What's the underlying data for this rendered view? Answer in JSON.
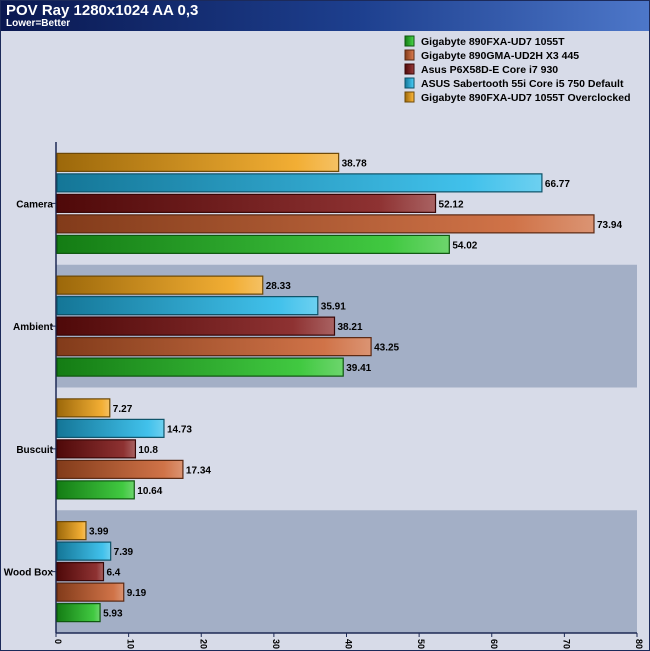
{
  "header": {
    "title": "POV Ray 1280x1024 AA 0,3",
    "subtitle": "Lower=Better"
  },
  "colors": {
    "title_bar": "#0d1e5c",
    "plot_band_light": "#d7dbe8",
    "plot_band_dark": "#a3afc6"
  },
  "chart_data": {
    "type": "bar",
    "orientation": "horizontal",
    "title": "POV Ray 1280x1024 AA 0,3",
    "subtitle": "Lower=Better",
    "categories": [
      "Camera",
      "Ambient",
      "Buscuit",
      "Wood Box"
    ],
    "xlim": [
      0,
      80
    ],
    "xticks": [
      0,
      10,
      20,
      30,
      40,
      50,
      60,
      70,
      80
    ],
    "legend_position": "top-right",
    "grid": false,
    "series": [
      {
        "name": "Gigabyte 890FXA-UD7 1055T",
        "color": "#1fbf1f",
        "values": [
          54.02,
          39.41,
          10.64,
          5.93
        ],
        "labels": [
          "54.02",
          "39.41",
          "10.64",
          "5.93"
        ]
      },
      {
        "name": "Gigabyte 890GMA-UD2H X3 445",
        "color": "#c85a28",
        "values": [
          73.94,
          43.25,
          17.34,
          9.19
        ],
        "labels": [
          "73.94",
          "43.25",
          "17.34",
          "9.19"
        ]
      },
      {
        "name": "Asus P6X58D-E Core i7 930",
        "color": "#7a0e0e",
        "values": [
          52.12,
          38.21,
          10.8,
          6.4
        ],
        "labels": [
          "52.12",
          "38.21",
          "10.8",
          "6.4"
        ]
      },
      {
        "name": "ASUS Sabertooth 55i Core i5 750 Default",
        "color": "#1fb6e8",
        "values": [
          66.77,
          35.91,
          14.73,
          7.39
        ],
        "labels": [
          "66.77",
          "35.91",
          "14.73",
          "7.39"
        ]
      },
      {
        "name": "Gigabyte 890FXA-UD7 1055T Overclocked",
        "color": "#f0a010",
        "values": [
          38.78,
          28.33,
          7.27,
          3.99
        ],
        "labels": [
          "38.78",
          "28.33",
          "7.27",
          "3.99"
        ]
      }
    ]
  }
}
